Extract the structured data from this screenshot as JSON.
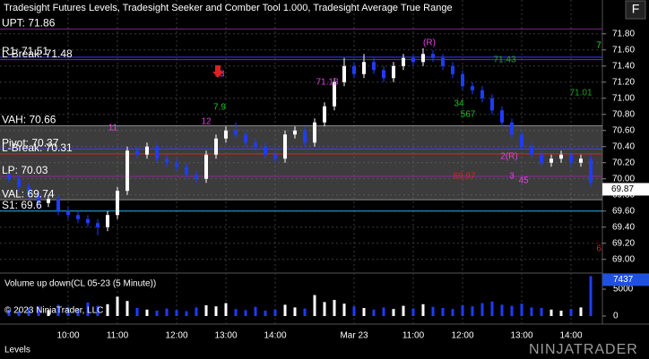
{
  "header": {
    "title": "Tradesight Futures Levels, Tradesight Seeker and Comber Tool 1.000, Tradesight Average True Range",
    "button": "F"
  },
  "chart_data": {
    "type": "candlestick",
    "categories": [
      null,
      null,
      null,
      null,
      null,
      null,
      "10:00",
      null,
      null,
      null,
      null,
      "11:00",
      null,
      null,
      null,
      null,
      null,
      "12:00",
      null,
      null,
      null,
      null,
      "13:00",
      null,
      null,
      null,
      null,
      "14:00",
      null,
      null,
      null,
      null,
      null,
      null,
      null,
      "Mar 23",
      null,
      null,
      null,
      null,
      null,
      "11:00",
      null,
      null,
      null,
      null,
      "12:00",
      null,
      null,
      null,
      null,
      null,
      "13:00",
      null,
      null,
      null,
      null,
      "14:00",
      null,
      null
    ],
    "open": [
      70.05,
      70.0,
      69.9,
      69.8,
      69.7,
      69.75,
      69.6,
      69.55,
      69.5,
      69.45,
      69.4,
      69.55,
      69.85,
      70.35,
      70.3,
      70.4,
      70.25,
      70.2,
      70.15,
      70.05,
      70.0,
      70.3,
      70.5,
      70.6,
      70.55,
      70.45,
      70.4,
      70.3,
      70.25,
      70.55,
      70.6,
      70.45,
      70.7,
      70.9,
      71.2,
      71.4,
      71.3,
      71.45,
      71.35,
      71.25,
      71.4,
      71.5,
      71.45,
      71.55,
      71.5,
      71.4,
      71.3,
      71.15,
      71.1,
      71.0,
      70.85,
      70.7,
      70.55,
      70.4,
      70.3,
      70.2,
      70.25,
      70.3,
      70.2,
      70.25
    ],
    "high": [
      70.1,
      70.05,
      69.95,
      69.85,
      69.8,
      69.8,
      69.65,
      69.6,
      69.55,
      69.5,
      69.6,
      69.9,
      70.4,
      70.4,
      70.45,
      70.45,
      70.3,
      70.25,
      70.2,
      70.1,
      70.35,
      70.55,
      70.65,
      70.7,
      70.6,
      70.5,
      70.45,
      70.35,
      70.6,
      70.65,
      70.65,
      70.75,
      70.95,
      71.25,
      71.5,
      71.45,
      71.55,
      71.5,
      71.4,
      71.45,
      71.55,
      71.55,
      71.62,
      71.6,
      71.55,
      71.45,
      71.35,
      71.2,
      71.15,
      71.05,
      70.9,
      70.75,
      70.6,
      70.45,
      70.35,
      70.3,
      70.35,
      70.35,
      70.3,
      70.3
    ],
    "low": [
      69.95,
      69.85,
      69.75,
      69.65,
      69.65,
      69.55,
      69.5,
      69.45,
      69.4,
      69.3,
      69.35,
      69.5,
      69.8,
      70.25,
      70.25,
      70.2,
      70.15,
      70.1,
      70.0,
      69.95,
      69.95,
      70.25,
      70.45,
      70.5,
      70.4,
      70.35,
      70.25,
      70.2,
      70.2,
      70.5,
      70.4,
      70.4,
      70.65,
      70.85,
      71.15,
      71.25,
      71.25,
      71.3,
      71.2,
      71.2,
      71.35,
      71.4,
      71.4,
      71.45,
      71.35,
      71.25,
      71.1,
      71.05,
      70.95,
      70.8,
      70.65,
      70.5,
      70.35,
      70.25,
      70.15,
      70.15,
      70.2,
      70.15,
      70.15,
      69.9
    ],
    "close": [
      70.0,
      69.9,
      69.8,
      69.7,
      69.75,
      69.6,
      69.55,
      69.5,
      69.45,
      69.4,
      69.55,
      69.85,
      70.35,
      70.3,
      70.4,
      70.25,
      70.2,
      70.15,
      70.05,
      70.0,
      70.3,
      70.5,
      70.6,
      70.55,
      70.45,
      70.4,
      70.3,
      70.25,
      70.55,
      70.6,
      70.45,
      70.7,
      70.9,
      71.2,
      71.4,
      71.3,
      71.45,
      71.35,
      71.25,
      71.4,
      71.5,
      71.45,
      71.55,
      71.5,
      71.4,
      71.3,
      71.15,
      71.1,
      71.0,
      70.85,
      70.7,
      70.55,
      70.4,
      70.3,
      70.2,
      70.25,
      70.3,
      70.2,
      70.25,
      69.95
    ],
    "up_color": "#ffffff",
    "down_color": "#1e3cff",
    "ylim": [
      68.83,
      72.22
    ],
    "yticks": [
      {
        "value": 71.8,
        "label": "71.80"
      },
      {
        "value": 71.6,
        "label": "71.60"
      },
      {
        "value": 71.4,
        "label": "71.40"
      },
      {
        "value": 71.2,
        "label": "71.20"
      },
      {
        "value": 71.0,
        "label": "71.00"
      },
      {
        "value": 70.8,
        "label": "70.80"
      },
      {
        "value": 70.6,
        "label": "70.60"
      },
      {
        "value": 70.4,
        "label": "70.40"
      },
      {
        "value": 70.2,
        "label": "70.20"
      },
      {
        "value": 70.0,
        "label": "70.00"
      },
      {
        "value": 69.8,
        "label": "69.80"
      },
      {
        "value": 69.6,
        "label": "69.60"
      },
      {
        "value": 69.4,
        "label": "69.40"
      },
      {
        "value": 69.2,
        "label": "69.20"
      },
      {
        "value": 69.0,
        "label": "69.00"
      }
    ],
    "last_price": 69.87,
    "value_area": {
      "high": 70.66,
      "low": 69.74,
      "color": "#6e6e6e"
    },
    "levels": [
      {
        "label": "UPT: 71.86",
        "value": 71.86,
        "color": "#7a2a8a"
      },
      {
        "label": "R1: 71.51",
        "value": 71.51,
        "color": "#3a3aff"
      },
      {
        "label": "L-Break: 71.48",
        "value": 71.48,
        "color": "#3a3aff"
      },
      {
        "label": "VAH: 70.66",
        "value": 70.66,
        "color": "#8a8a8a"
      },
      {
        "label": "Pivot: 70.37",
        "value": 70.37,
        "color": "#3a3aff"
      },
      {
        "label": "L-Break: 70.31",
        "value": 70.31,
        "color": "#e02020"
      },
      {
        "label": "LP: 70.03",
        "value": 70.03,
        "color": "#8a2a9a"
      },
      {
        "label": "VAL: 69.74",
        "value": 69.74,
        "color": "#8a8a8a"
      },
      {
        "label": "S1: 69.6",
        "value": 69.6,
        "color": "#20b0e0"
      }
    ],
    "annotations": [
      {
        "text": "(R)",
        "color": "#e040e0"
      },
      {
        "text": "71.13",
        "color": "#e040e0"
      },
      {
        "text": "71.43",
        "color": "#20a020"
      },
      {
        "text": "71.01",
        "color": "#20a020"
      },
      {
        "text": "7",
        "color": "#20e020"
      },
      {
        "text": "69.97",
        "color": "#e02020"
      },
      {
        "text": "6",
        "color": "#e02020"
      },
      {
        "text": "13",
        "color": "#e040e0"
      },
      {
        "text": "7.9",
        "color": "#20c020"
      },
      {
        "text": "11",
        "color": "#e040e0"
      },
      {
        "text": "12",
        "color": "#e040e0"
      },
      {
        "text": "34",
        "color": "#20c020"
      },
      {
        "text": "567",
        "color": "#20c020"
      },
      {
        "text": "3",
        "color": "#e040e0"
      },
      {
        "text": "45",
        "color": "#e040e0"
      },
      {
        "text": "2(R)",
        "color": "#e040e0"
      }
    ],
    "volume": {
      "label": "Volume up down(CL 05-23 (5 Minute))",
      "values": [
        1200,
        900,
        1500,
        1800,
        1100,
        2100,
        1700,
        1300,
        2500,
        1900,
        2200,
        3600,
        2800,
        1500,
        1200,
        1000,
        1400,
        1100,
        900,
        1600,
        2000,
        1800,
        2400,
        1300,
        1100,
        1700,
        1000,
        1200,
        2100,
        1600,
        1400,
        3900,
        2600,
        3000,
        2300,
        1800,
        1500,
        1200,
        1600,
        1300,
        1900,
        1400,
        2200,
        1700,
        1500,
        1300,
        2000,
        1800,
        2400,
        2700,
        2100,
        1900,
        2300,
        1600,
        1500,
        1200,
        1000,
        1300,
        1600,
        7437
      ],
      "ylim": [
        0,
        8000
      ],
      "yticks": [
        5000,
        0
      ],
      "last": 7437
    },
    "copyright": "© 2023 NinjaTrader, LLC"
  },
  "footer": {
    "tab": "Levels",
    "logo": "NINJATRADER"
  }
}
